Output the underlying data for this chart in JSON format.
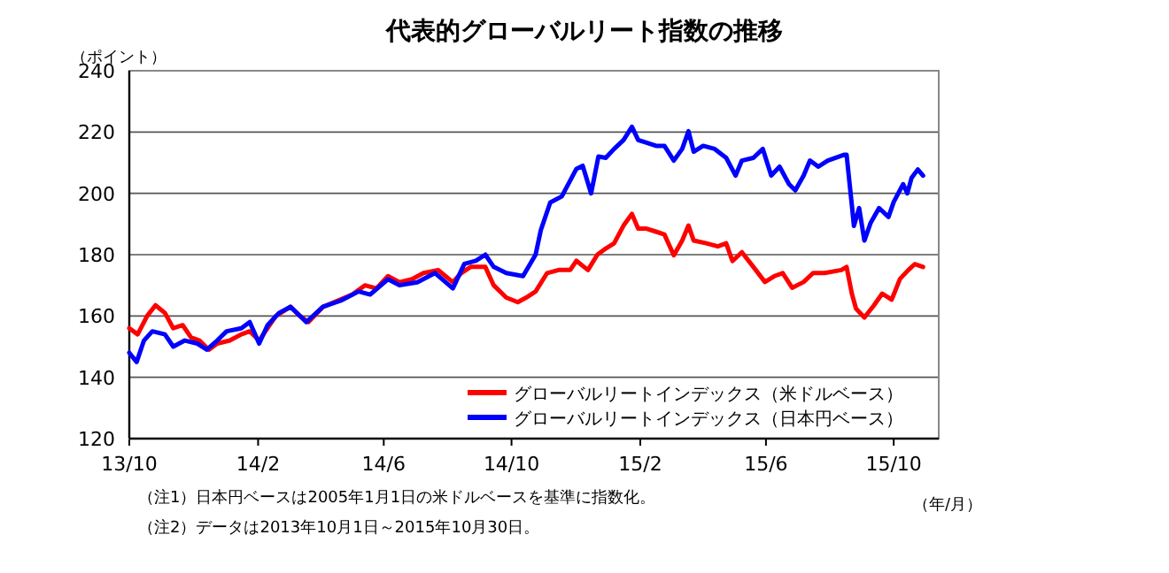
{
  "chart_data": {
    "type": "line",
    "title": "代表的グローバルリート指数の推移",
    "ylabel": "（ポイント）",
    "xlabel": "（年/月）",
    "annotations": [
      "（注1）日本円ベースは2005年1月1日の米ドルベースを基準に指数化。",
      "（注2）データは2013年10月1日～2015年10月30日。"
    ],
    "xlim": [
      "2013-10-01",
      "2015-11-13"
    ],
    "xticks": [
      {
        "value": "2013-10-01",
        "label": "13/10"
      },
      {
        "value": "2014-02-01",
        "label": "14/2"
      },
      {
        "value": "2014-06-01",
        "label": "14/6"
      },
      {
        "value": "2014-10-01",
        "label": "14/10"
      },
      {
        "value": "2015-02-01",
        "label": "15/2"
      },
      {
        "value": "2015-06-01",
        "label": "15/6"
      },
      {
        "value": "2015-10-01",
        "label": "15/10"
      }
    ],
    "ylim": [
      120,
      240
    ],
    "yticks": [
      120,
      140,
      160,
      180,
      200,
      220,
      240
    ],
    "grid": "y",
    "legend": "bottom right",
    "marker": "none",
    "line_style": "solid",
    "series": [
      {
        "name": "グローバルリートインデックス（米ドルベース）",
        "color": "#ff0000",
        "x": [
          "2013-10-01",
          "2013-10-09",
          "2013-10-18",
          "2013-10-26",
          "2013-11-04",
          "2013-11-12",
          "2013-11-21",
          "2013-11-29",
          "2013-12-07",
          "2013-12-16",
          "2013-12-24",
          "2014-01-05",
          "2014-01-16",
          "2014-01-24",
          "2014-02-02",
          "2014-02-10",
          "2014-02-18",
          "2014-03-04",
          "2014-03-13",
          "2014-03-21",
          "2014-04-04",
          "2014-04-18",
          "2014-05-02",
          "2014-05-14",
          "2014-05-25",
          "2014-06-05",
          "2014-06-16",
          "2014-06-28",
          "2014-07-09",
          "2014-07-23",
          "2014-08-06",
          "2014-08-14",
          "2014-08-23",
          "2014-09-06",
          "2014-09-14",
          "2014-09-26",
          "2014-10-07",
          "2014-10-15",
          "2014-10-24",
          "2014-11-04",
          "2014-11-15",
          "2014-11-26",
          "2014-12-02",
          "2014-12-13",
          "2014-12-22",
          "2014-12-30",
          "2015-01-07",
          "2015-01-16",
          "2015-01-24",
          "2015-01-30",
          "2015-02-07",
          "2015-02-16",
          "2015-02-24",
          "2015-03-05",
          "2015-03-13",
          "2015-03-19",
          "2015-03-24",
          "2015-04-05",
          "2015-04-16",
          "2015-04-24",
          "2015-04-30",
          "2015-05-09",
          "2015-05-20",
          "2015-05-31",
          "2015-06-09",
          "2015-06-17",
          "2015-06-26",
          "2015-07-07",
          "2015-07-16",
          "2015-07-27",
          "2015-08-12",
          "2015-08-17",
          "2015-08-22",
          "2015-08-26",
          "2015-09-03",
          "2015-09-12",
          "2015-09-20",
          "2015-09-29",
          "2015-10-07",
          "2015-10-15",
          "2015-10-21",
          "2015-10-29"
        ],
        "values": [
          156,
          154,
          160,
          163.5,
          161,
          156,
          157,
          153,
          152,
          149,
          151,
          152,
          154,
          155,
          152,
          156,
          160,
          163,
          160,
          158,
          163,
          165,
          167,
          170,
          169,
          173,
          171,
          172,
          174,
          175,
          171,
          174,
          176,
          176,
          170,
          166,
          164.5,
          166,
          168,
          174,
          175,
          175,
          178,
          175,
          180,
          182,
          183.7,
          189.5,
          193.3,
          188.5,
          188.5,
          187.5,
          186.6,
          179.8,
          184.6,
          189.5,
          184.6,
          183.7,
          182.7,
          183.7,
          177.9,
          180.8,
          176,
          171.1,
          173,
          174,
          169.2,
          171.1,
          174,
          174,
          175,
          176,
          167.3,
          162.4,
          159.5,
          163.4,
          167.3,
          165.3,
          172.1,
          175,
          176.9,
          176
        ]
      },
      {
        "name": "グローバルリートインデックス（日本円ベース）",
        "color": "#0000ff",
        "x": [
          "2013-10-01",
          "2013-10-08",
          "2013-10-15",
          "2013-10-23",
          "2013-11-04",
          "2013-11-12",
          "2013-11-23",
          "2013-12-05",
          "2013-12-14",
          "2013-12-24",
          "2014-01-02",
          "2014-01-16",
          "2014-01-24",
          "2014-02-02",
          "2014-02-10",
          "2014-02-21",
          "2014-03-04",
          "2014-03-19",
          "2014-04-04",
          "2014-04-21",
          "2014-05-08",
          "2014-05-19",
          "2014-06-05",
          "2014-06-16",
          "2014-07-03",
          "2014-07-20",
          "2014-08-06",
          "2014-08-17",
          "2014-08-28",
          "2014-09-06",
          "2014-09-14",
          "2014-09-26",
          "2014-10-12",
          "2014-10-24",
          "2014-10-29",
          "2014-11-07",
          "2014-11-18",
          "2014-12-02",
          "2014-12-08",
          "2014-12-16",
          "2014-12-23",
          "2014-12-30",
          "2015-01-07",
          "2015-01-16",
          "2015-01-24",
          "2015-01-30",
          "2015-02-07",
          "2015-02-16",
          "2015-02-24",
          "2015-03-05",
          "2015-03-13",
          "2015-03-19",
          "2015-03-24",
          "2015-04-02",
          "2015-04-13",
          "2015-04-24",
          "2015-05-03",
          "2015-05-09",
          "2015-05-20",
          "2015-05-29",
          "2015-06-06",
          "2015-06-14",
          "2015-06-23",
          "2015-06-29",
          "2015-07-07",
          "2015-07-13",
          "2015-07-21",
          "2015-07-30",
          "2015-08-15",
          "2015-08-17",
          "2015-08-22",
          "2015-08-24",
          "2015-08-29",
          "2015-09-03",
          "2015-09-09",
          "2015-09-17",
          "2015-09-26",
          "2015-10-01",
          "2015-10-10",
          "2015-10-14",
          "2015-10-18",
          "2015-10-24",
          "2015-10-29"
        ],
        "values": [
          148,
          145,
          152,
          155,
          154,
          150,
          152,
          151,
          149,
          152,
          155,
          156,
          158,
          151,
          157,
          161,
          163,
          158,
          163,
          165,
          168,
          167,
          172,
          170,
          171,
          174,
          169,
          177,
          178,
          180,
          176,
          174,
          173,
          180,
          188,
          197,
          199,
          208,
          209,
          200,
          212,
          211.6,
          214.5,
          217.4,
          221.7,
          217.4,
          216.5,
          215.5,
          215.5,
          210.7,
          214.5,
          220.3,
          213.6,
          215.5,
          214.5,
          211.6,
          205.8,
          210.7,
          211.6,
          214.5,
          205.8,
          208.7,
          203,
          201,
          205.8,
          210.7,
          208.7,
          210.7,
          212.6,
          212.6,
          196.2,
          189.4,
          195.2,
          184.6,
          190.4,
          195.2,
          192.3,
          197.2,
          203,
          200,
          205,
          207.8,
          205.8
        ]
      }
    ]
  }
}
